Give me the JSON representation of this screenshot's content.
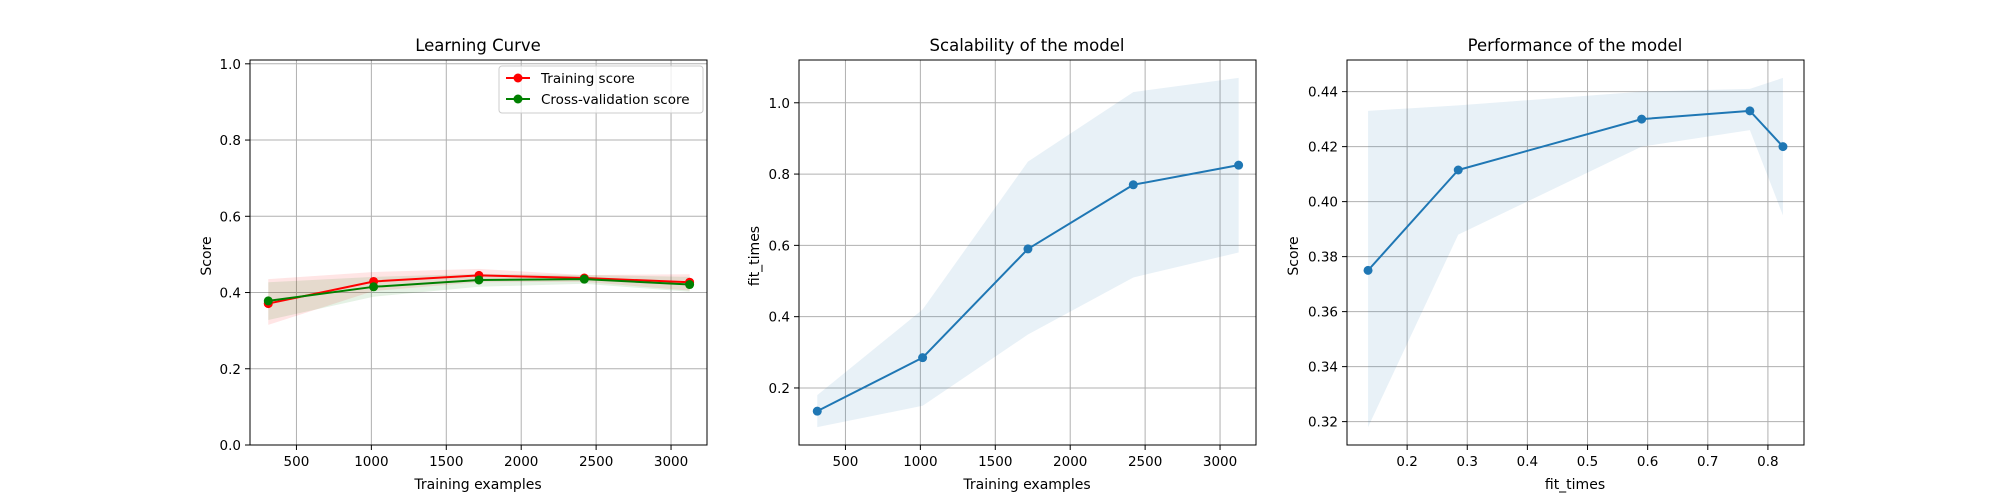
{
  "chart_data": [
    {
      "type": "line",
      "title": "Learning Curve",
      "xlabel": "Training examples",
      "ylabel": "Score",
      "xlim": [
        190,
        3240
      ],
      "ylim": [
        0.0,
        1.01
      ],
      "xticks": [
        "500",
        "1000",
        "1500",
        "2000",
        "2500",
        "3000"
      ],
      "yticks": [
        "0.0",
        "0.2",
        "0.4",
        "0.6",
        "0.8",
        "1.0"
      ],
      "grid": true,
      "legend": "top-right",
      "x": [
        312,
        1015,
        1718,
        2421,
        3124
      ],
      "series": [
        {
          "name": "Training score",
          "color": "#ff0000",
          "values": [
            0.371,
            0.429,
            0.445,
            0.438,
            0.427
          ],
          "band_lower": [
            0.315,
            0.404,
            0.427,
            0.428,
            0.405
          ],
          "band_upper": [
            0.435,
            0.454,
            0.462,
            0.446,
            0.448
          ]
        },
        {
          "name": "Cross-validation score",
          "color": "#008000",
          "values": [
            0.378,
            0.415,
            0.433,
            0.435,
            0.421
          ],
          "band_lower": [
            0.328,
            0.389,
            0.415,
            0.423,
            0.402
          ],
          "band_upper": [
            0.427,
            0.441,
            0.449,
            0.446,
            0.441
          ]
        }
      ]
    },
    {
      "type": "line",
      "title": "Scalability of the model",
      "xlabel": "Training examples",
      "ylabel": "fit_times",
      "xlim": [
        190,
        3240
      ],
      "ylim": [
        0.04,
        1.12
      ],
      "xticks": [
        "500",
        "1000",
        "1500",
        "2000",
        "2500",
        "3000"
      ],
      "yticks": [
        "0.2",
        "0.4",
        "0.6",
        "0.8",
        "1.0"
      ],
      "grid": true,
      "x": [
        312,
        1015,
        1718,
        2421,
        3124
      ],
      "series": [
        {
          "color": "#1f77b4",
          "values": [
            0.135,
            0.285,
            0.59,
            0.77,
            0.825
          ],
          "band_lower": [
            0.09,
            0.15,
            0.35,
            0.51,
            0.58
          ],
          "band_upper": [
            0.18,
            0.42,
            0.835,
            1.03,
            1.07
          ]
        }
      ]
    },
    {
      "type": "line",
      "title": "Performance of the model",
      "xlabel": "fit_times",
      "ylabel": "Score",
      "xlim": [
        0.1,
        0.86
      ],
      "ylim": [
        0.3115,
        0.4515
      ],
      "xticks": [
        "0.2",
        "0.3",
        "0.4",
        "0.5",
        "0.6",
        "0.7",
        "0.8"
      ],
      "yticks": [
        "0.32",
        "0.34",
        "0.36",
        "0.38",
        "0.40",
        "0.42",
        "0.44"
      ],
      "grid": true,
      "x": [
        0.135,
        0.285,
        0.59,
        0.77,
        0.825
      ],
      "series": [
        {
          "color": "#1f77b4",
          "values": [
            0.375,
            0.4115,
            0.43,
            0.433,
            0.42
          ],
          "band_lower": [
            0.318,
            0.388,
            0.42,
            0.426,
            0.395
          ],
          "band_upper": [
            0.433,
            0.435,
            0.44,
            0.441,
            0.445
          ]
        }
      ]
    }
  ]
}
